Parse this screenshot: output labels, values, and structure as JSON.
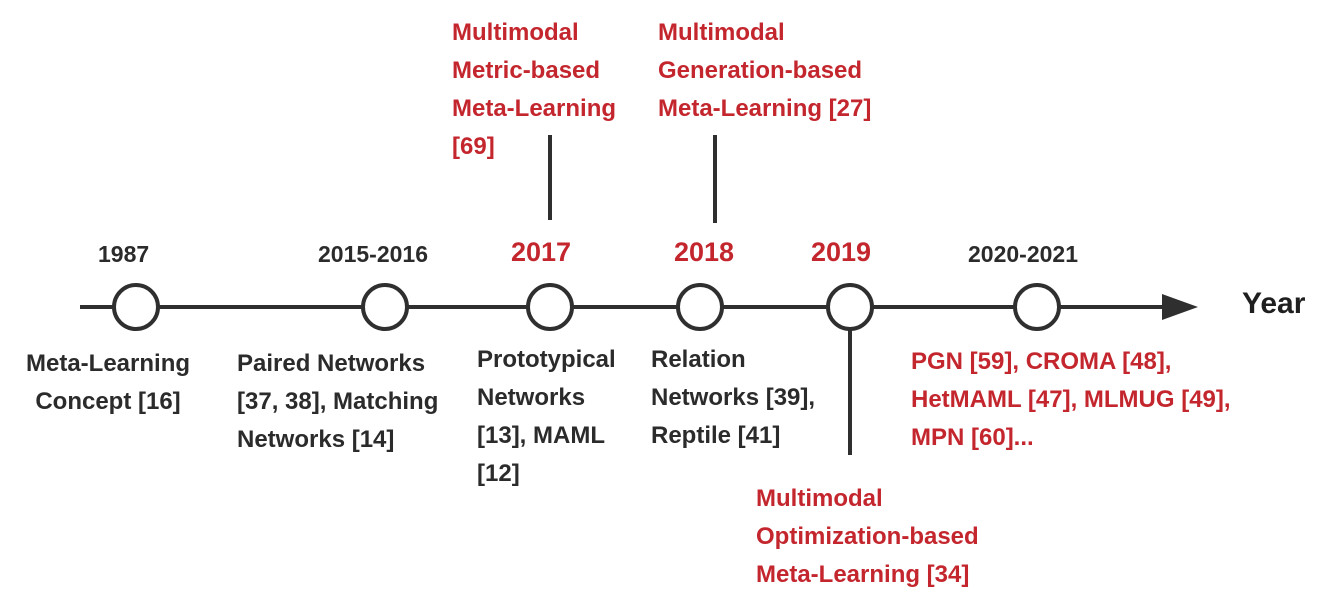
{
  "colors": {
    "accent": "#c4262e",
    "text": "#2b2b2b",
    "line": "#2f2f2f"
  },
  "axis_label": "Year",
  "milestones": [
    {
      "year": "1987",
      "highlight": false,
      "below": "Meta-Learning\nConcept [16]"
    },
    {
      "year": "2015-2016",
      "highlight": false,
      "below": "Paired Networks\n[37, 38], Matching\nNetworks [14]"
    },
    {
      "year": "2017",
      "highlight": true,
      "below": "Prototypical\nNetworks\n[13], MAML\n[12]",
      "branch": "Multimodal\nMetric-based\nMeta-Learning\n[69]"
    },
    {
      "year": "2018",
      "highlight": true,
      "below": "Relation\nNetworks [39],\nReptile [41]",
      "branch": "Multimodal\nGeneration-based\nMeta-Learning [27]"
    },
    {
      "year": "2019",
      "highlight": true,
      "branch": "Multimodal\nOptimization-based\nMeta-Learning [34]"
    },
    {
      "year": "2020-2021",
      "highlight": false,
      "below": "PGN [59], CROMA [48],\nHetMAML [47], MLMUG [49],\nMPN [60]..."
    }
  ]
}
